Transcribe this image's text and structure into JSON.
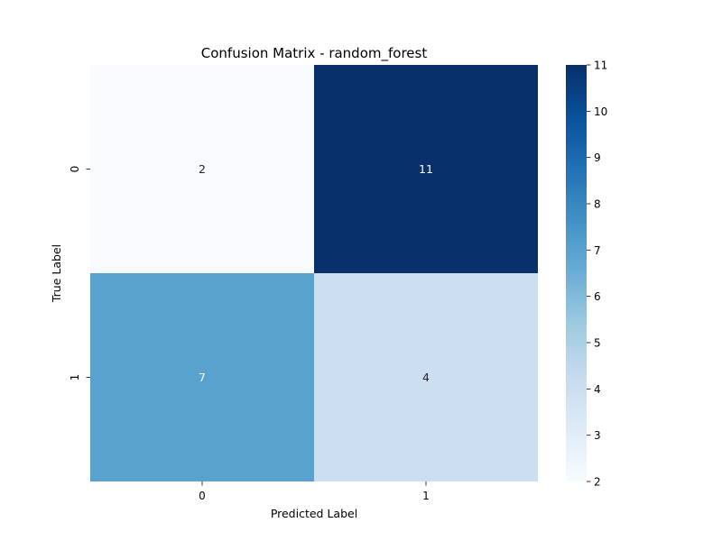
{
  "chart_data": {
    "type": "heatmap",
    "title": "Confusion Matrix - random_forest",
    "xlabel": "Predicted Label",
    "ylabel": "True Label",
    "x_categories": [
      "0",
      "1"
    ],
    "y_categories": [
      "0",
      "1"
    ],
    "values": [
      [
        2,
        11
      ],
      [
        7,
        4
      ]
    ],
    "colorscale": "Blues",
    "vmin": 2,
    "vmax": 11,
    "colorbar_ticks": [
      "2",
      "3",
      "4",
      "5",
      "6",
      "7",
      "8",
      "9",
      "10",
      "11"
    ],
    "grid": false,
    "legend": "none"
  }
}
